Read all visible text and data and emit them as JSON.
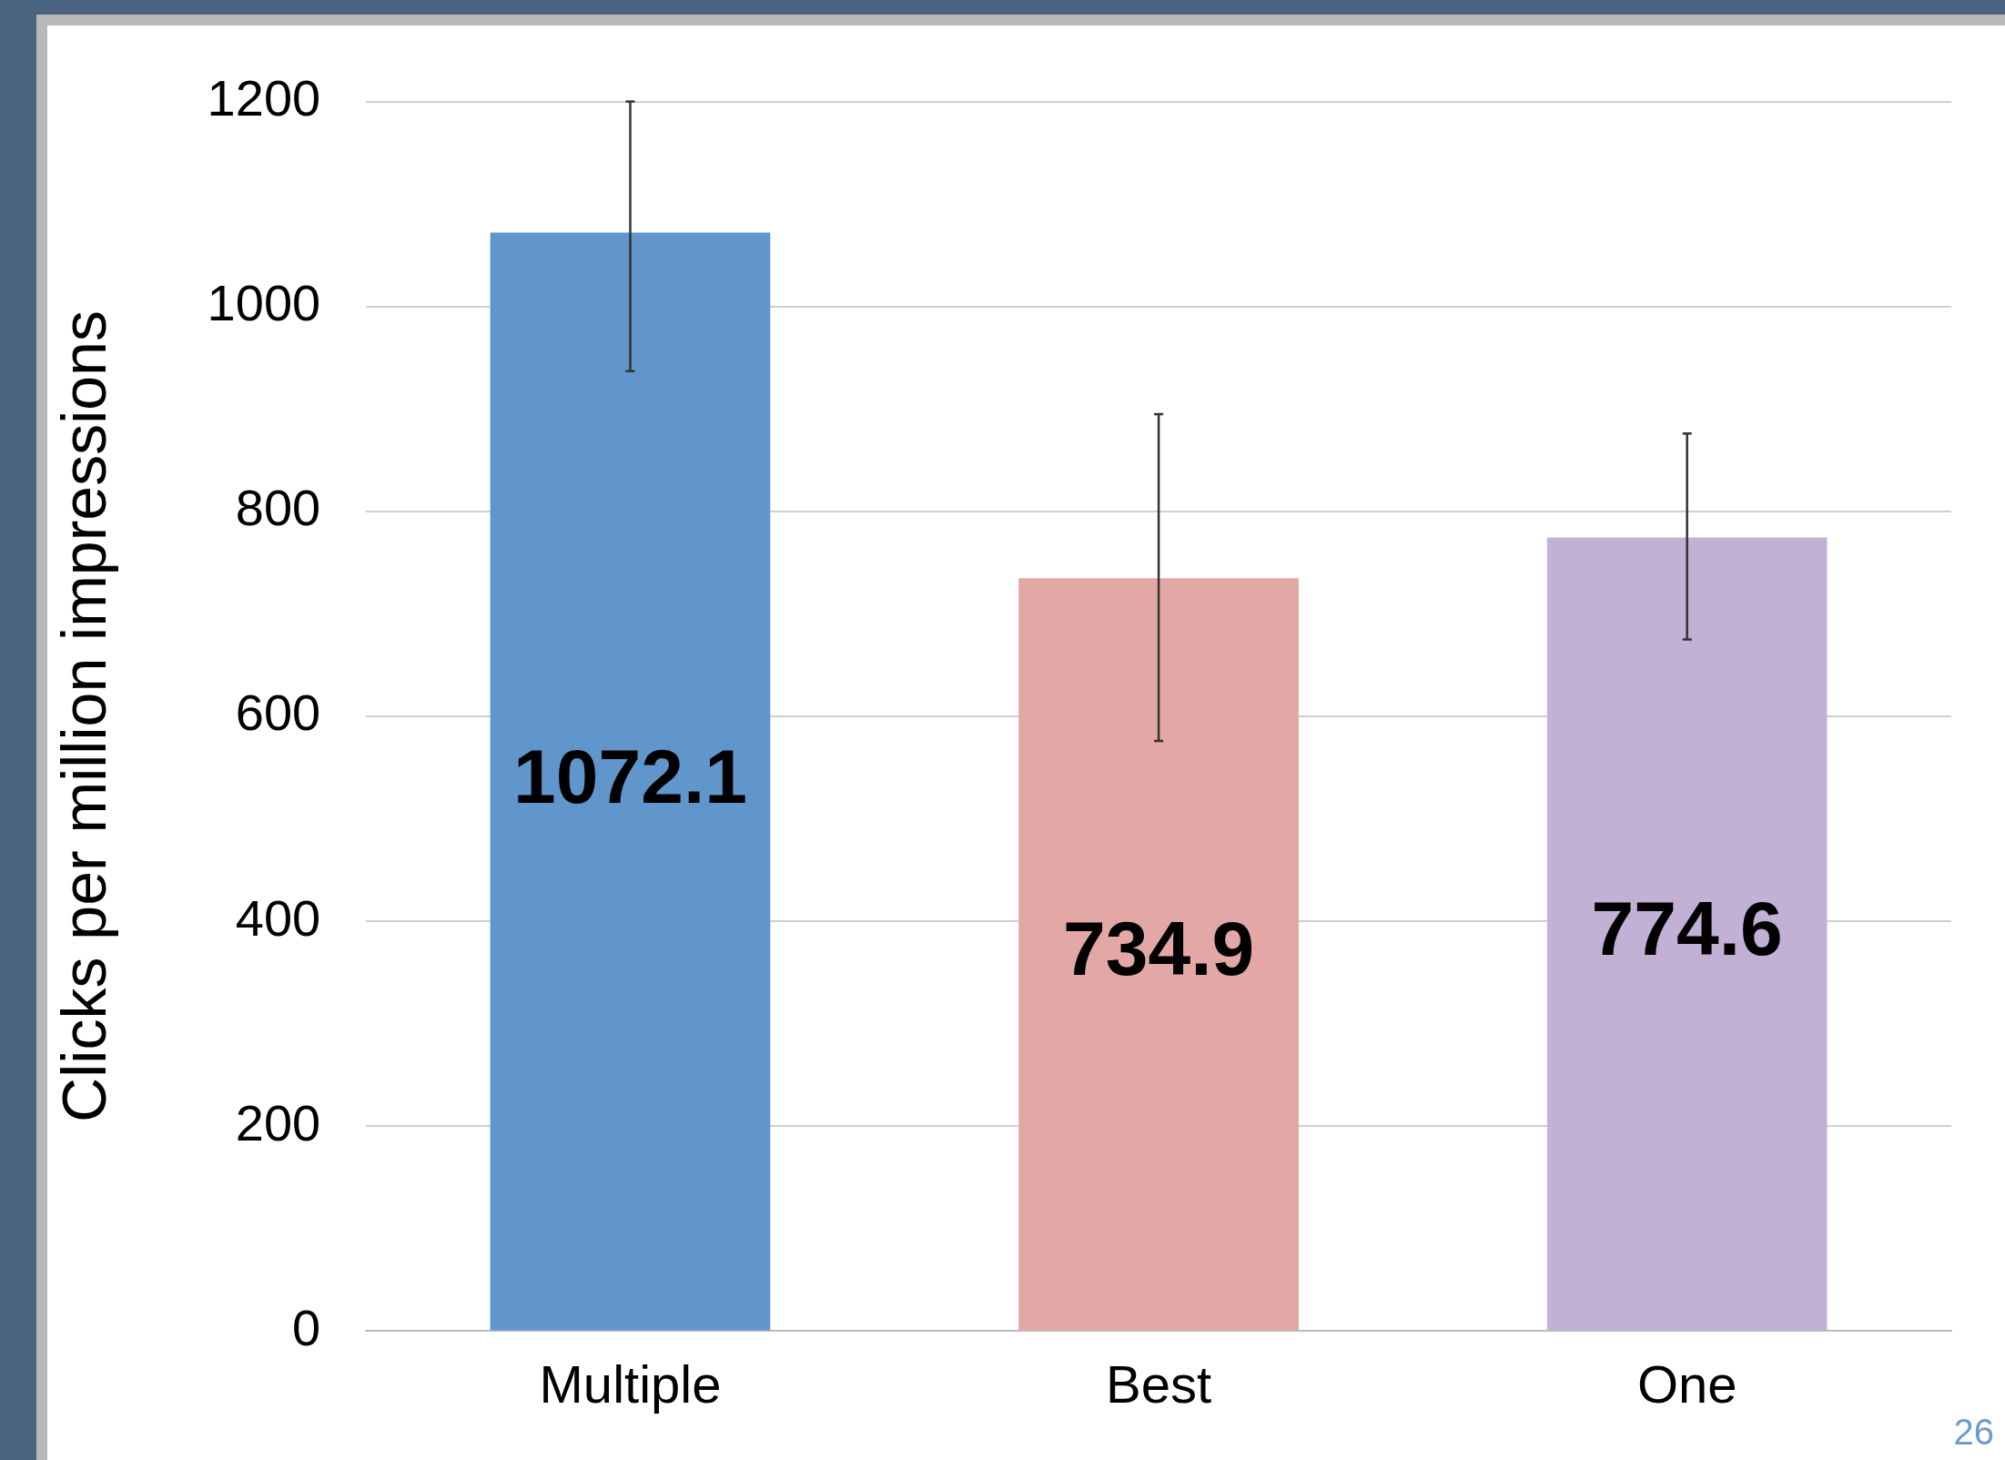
{
  "chart_data": {
    "type": "bar",
    "ylabel": "Clicks per million impressions",
    "categories": [
      "Multiple",
      "Best",
      "One"
    ],
    "values": [
      1072.1,
      734.9,
      774.6
    ],
    "colors": [
      "#6096cc",
      "#e3a8a6",
      "#c2b1d5"
    ],
    "errors": [
      [
        937,
        1200
      ],
      [
        576,
        895
      ],
      [
        675,
        876
      ]
    ],
    "ylim": [
      0,
      1200
    ],
    "yticks": [
      0,
      200,
      400,
      600,
      800,
      1000,
      1200
    ],
    "grid": "y",
    "legend": false,
    "data_labels": true,
    "annotations": [
      "26"
    ]
  }
}
